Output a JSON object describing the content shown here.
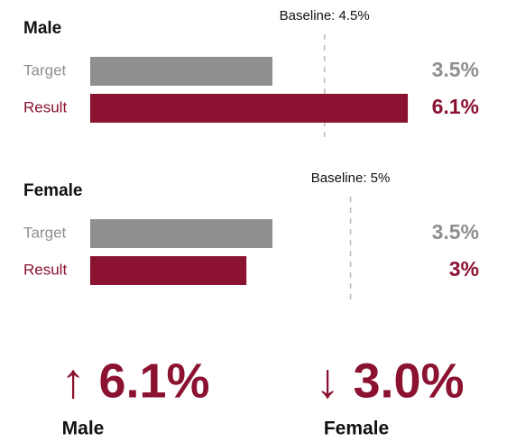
{
  "chart_data": [
    {
      "type": "bar",
      "orientation": "horizontal",
      "title": "Male",
      "categories": [
        "Target",
        "Result"
      ],
      "values": [
        3.5,
        6.1
      ],
      "value_labels": [
        "3.5%",
        "6.1%"
      ],
      "colors": [
        "#8f8f8f",
        "#8b1230"
      ],
      "xlim": [
        0,
        7
      ],
      "baseline": {
        "value": 4.5,
        "label": "Baseline: 4.5%"
      }
    },
    {
      "type": "bar",
      "orientation": "horizontal",
      "title": "Female",
      "categories": [
        "Target",
        "Result"
      ],
      "values": [
        3.5,
        3
      ],
      "value_labels": [
        "3.5%",
        "3%"
      ],
      "colors": [
        "#8f8f8f",
        "#8b1230"
      ],
      "xlim": [
        0,
        7
      ],
      "baseline": {
        "value": 5,
        "label": "Baseline: 5%"
      }
    }
  ],
  "summary": [
    {
      "text": "↑ 6.1%",
      "label": "Male"
    },
    {
      "text": "↓ 3.0%",
      "label": "Female"
    }
  ]
}
